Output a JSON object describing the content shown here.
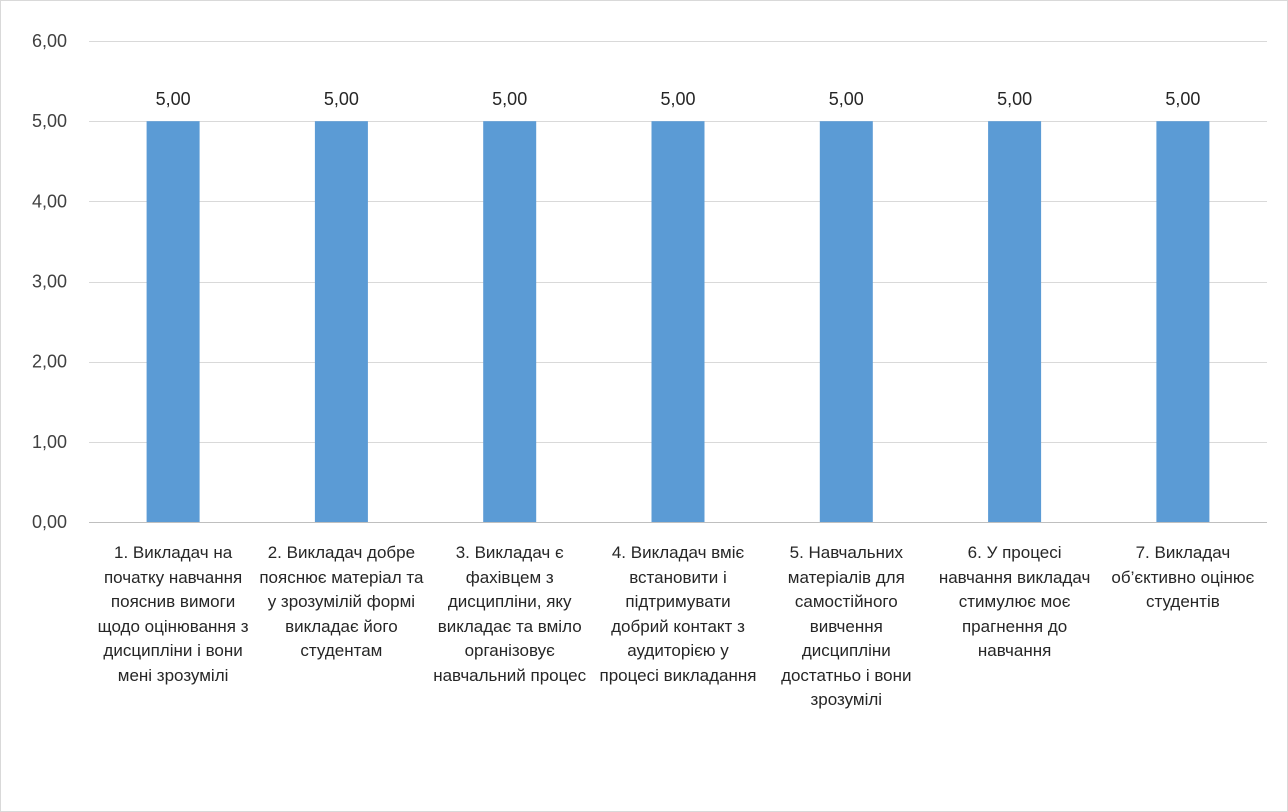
{
  "chart_data": {
    "type": "bar",
    "categories": [
      "1. Викладач на початку навчання пояснив вимоги щодо оцінювання з дисципліни і вони мені зрозумілі",
      "2. Викладач добре пояснює матеріал та у зрозумілій формі викладає його студентам",
      "3. Викладач є фахівцем з дисципліни, яку викладає та вміло організовує навчальний процес",
      "4. Викладач вміє встановити і підтримувати добрий контакт з аудиторією у процесі викладання",
      "5. Навчальних матеріалів для самостійного вивчення дисципліни достатньо і вони зрозумілі",
      "6.  У процесі навчання викладач стимулює моє прагнення до навчання",
      "7. Викладач об’єктивно оцінює студентів"
    ],
    "values": [
      5,
      5,
      5,
      5,
      5,
      5,
      5
    ],
    "data_labels": [
      "5,00",
      "5,00",
      "5,00",
      "5,00",
      "5,00",
      "5,00",
      "5,00"
    ],
    "ylim": [
      0,
      6
    ],
    "yticks": [
      0,
      1,
      2,
      3,
      4,
      5,
      6
    ],
    "ytick_labels": [
      "0,00",
      "1,00",
      "2,00",
      "3,00",
      "4,00",
      "5,00",
      "6,00"
    ],
    "grid": true,
    "legend": "none",
    "title": "",
    "xlabel": "",
    "ylabel": "",
    "colors": {
      "bar": "#5b9bd5",
      "grid": "#d9d9d9",
      "axis": "#bfbfbf",
      "text": "#404040"
    }
  }
}
